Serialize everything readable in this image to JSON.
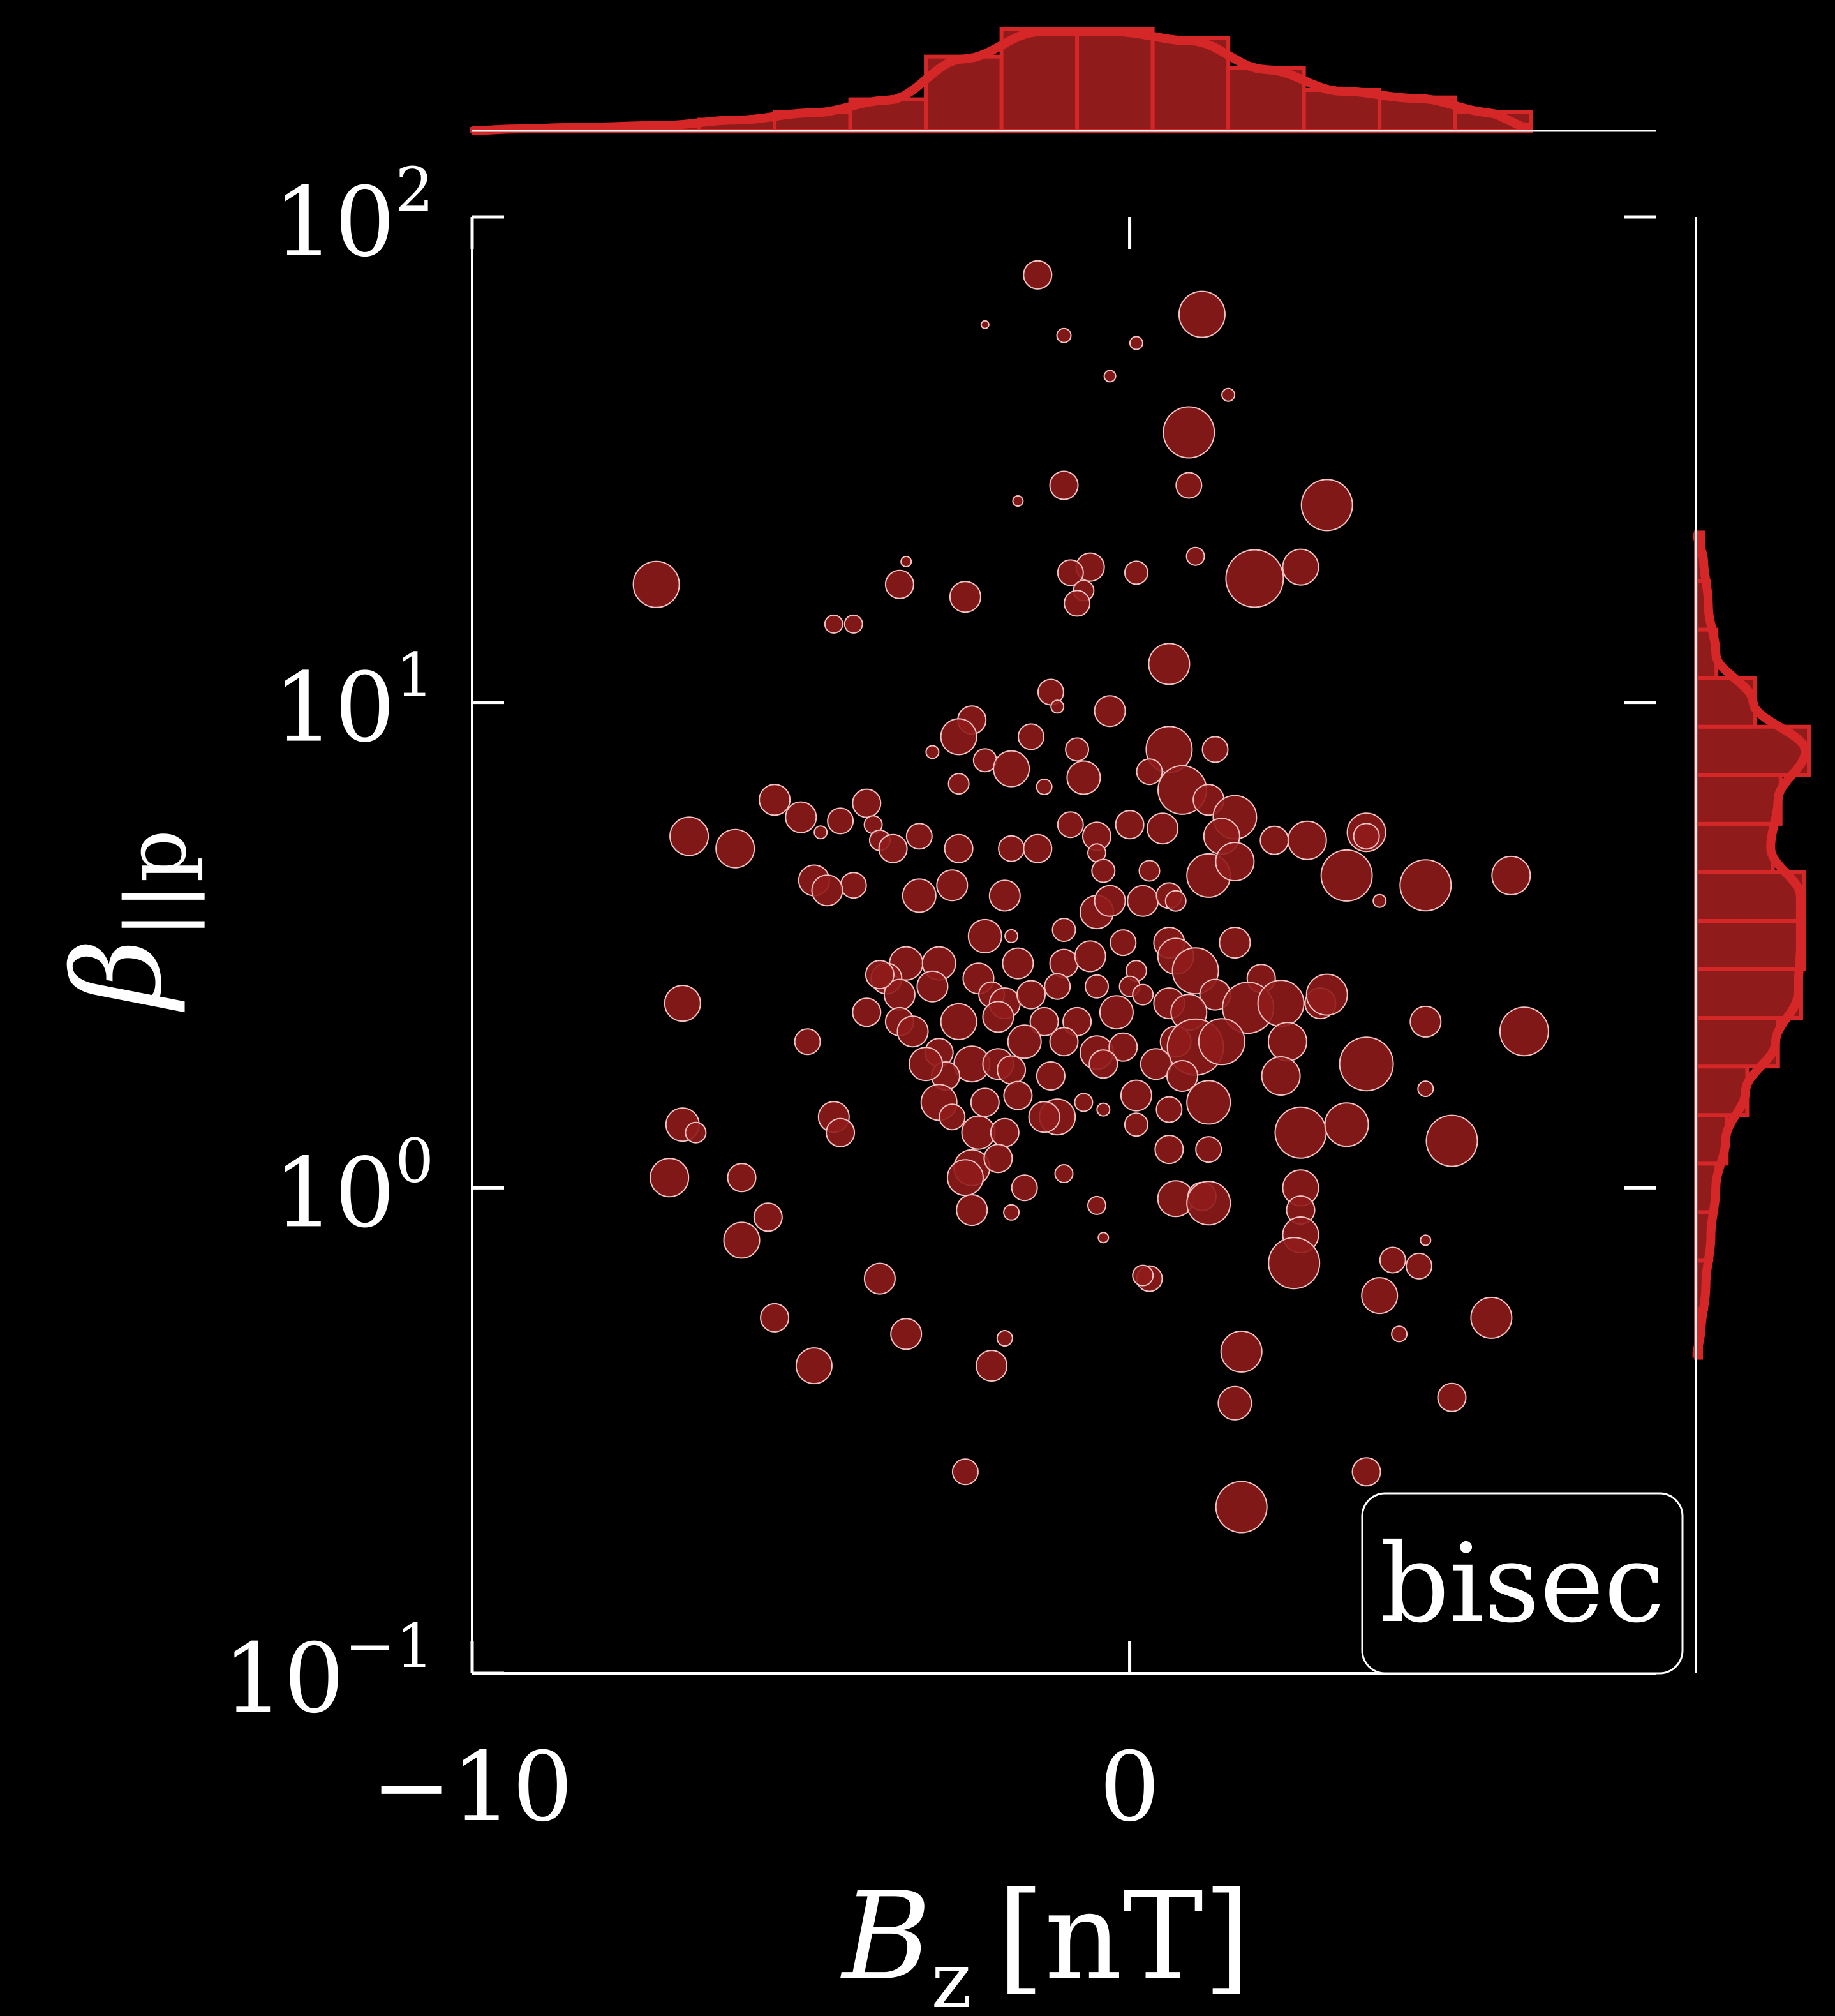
{
  "chart_data": {
    "type": "scatter",
    "title": "",
    "xlabel": {
      "symbol": "B",
      "subscript": "z",
      "unit": "[nT]"
    },
    "ylabel": {
      "symbol": "β",
      "subscript": "||p"
    },
    "xlim": [
      -10,
      8
    ],
    "ylim_log10": [
      -1,
      2
    ],
    "y_scale": "log",
    "x_ticks": [
      {
        "value": -10,
        "label": "−10"
      },
      {
        "value": 0,
        "label": "0"
      }
    ],
    "y_ticks": [
      {
        "exp": 2,
        "base": "10",
        "sup": "2"
      },
      {
        "exp": 1,
        "base": "10",
        "sup": "1"
      },
      {
        "exp": 0,
        "base": "10",
        "sup": "0"
      },
      {
        "exp": -1,
        "base": "10",
        "sup": "−1"
      }
    ],
    "grid": false,
    "legend": {
      "label": "bisec",
      "placement": "bottom-right"
    },
    "marker_color": "#8f1b1b",
    "marker_edge": "#f2c2c2",
    "hist_color": "#d62728",
    "hist_fill": "#8f1b1b",
    "axis_color": "#ffffff",
    "background": "#000000",
    "x_hist": {
      "bin_edges": [
        -10,
        -8.85,
        -7.7,
        -6.55,
        -5.4,
        -4.25,
        -3.1,
        -1.95,
        -0.8,
        0.35,
        1.5,
        2.65,
        3.8,
        4.95,
        6.1
      ],
      "counts": [
        1,
        2,
        3,
        6,
        10,
        17,
        40,
        55,
        55,
        50,
        34,
        22,
        18,
        10
      ]
    },
    "y_hist": {
      "bin_edges_log10": [
        -0.35,
        -0.25,
        -0.15,
        -0.05,
        0.05,
        0.15,
        0.25,
        0.35,
        0.45,
        0.55,
        0.65,
        0.75,
        0.85,
        0.95,
        1.05,
        1.15,
        1.25,
        1.35
      ],
      "counts": [
        2,
        4,
        6,
        8,
        12,
        20,
        32,
        41,
        42,
        42,
        30,
        33,
        44,
        23,
        8,
        5,
        3
      ]
    },
    "points": [
      {
        "x": -1.4,
        "y": 76,
        "s": 22
      },
      {
        "x": -2.2,
        "y": 60,
        "s": 6
      },
      {
        "x": -1.0,
        "y": 57,
        "s": 11
      },
      {
        "x": 0.1,
        "y": 55,
        "s": 10
      },
      {
        "x": 1.1,
        "y": 63,
        "s": 36
      },
      {
        "x": -0.3,
        "y": 47,
        "s": 9
      },
      {
        "x": 1.5,
        "y": 43,
        "s": 10
      },
      {
        "x": 0.9,
        "y": 36,
        "s": 40
      },
      {
        "x": -1.0,
        "y": 28,
        "s": 22
      },
      {
        "x": -1.7,
        "y": 26,
        "s": 8
      },
      {
        "x": 0.9,
        "y": 28,
        "s": 20
      },
      {
        "x": 3.0,
        "y": 25.5,
        "s": 40
      },
      {
        "x": -7.2,
        "y": 17.5,
        "s": 36
      },
      {
        "x": -3.4,
        "y": 19.5,
        "s": 8
      },
      {
        "x": -3.5,
        "y": 17.5,
        "s": 22
      },
      {
        "x": -2.5,
        "y": 16.5,
        "s": 24
      },
      {
        "x": -0.6,
        "y": 19,
        "s": 22
      },
      {
        "x": -0.9,
        "y": 18.5,
        "s": 20
      },
      {
        "x": -0.7,
        "y": 17,
        "s": 16
      },
      {
        "x": 0.1,
        "y": 18.5,
        "s": 18
      },
      {
        "x": 1.0,
        "y": 20,
        "s": 14
      },
      {
        "x": 1.9,
        "y": 18,
        "s": 45
      },
      {
        "x": 2.6,
        "y": 19,
        "s": 28
      },
      {
        "x": -0.8,
        "y": 16,
        "s": 20
      },
      {
        "x": -4.5,
        "y": 14.5,
        "s": 14
      },
      {
        "x": -4.2,
        "y": 14.5,
        "s": 14
      },
      {
        "x": 0.6,
        "y": 12,
        "s": 32
      },
      {
        "x": -1.2,
        "y": 10.5,
        "s": 20
      },
      {
        "x": -1.1,
        "y": 9.8,
        "s": 10
      },
      {
        "x": -0.3,
        "y": 9.6,
        "s": 24
      },
      {
        "x": -2.4,
        "y": 9.2,
        "s": 22
      },
      {
        "x": -2.6,
        "y": 8.5,
        "s": 28
      },
      {
        "x": -1.5,
        "y": 8.5,
        "s": 20
      },
      {
        "x": -2.2,
        "y": 7.6,
        "s": 18
      },
      {
        "x": -0.8,
        "y": 8.0,
        "s": 18
      },
      {
        "x": -1.8,
        "y": 7.3,
        "s": 28
      },
      {
        "x": -3.0,
        "y": 7.9,
        "s": 10
      },
      {
        "x": 0.6,
        "y": 8.0,
        "s": 36
      },
      {
        "x": 1.3,
        "y": 8.0,
        "s": 20
      },
      {
        "x": -2.6,
        "y": 6.8,
        "s": 16
      },
      {
        "x": -1.3,
        "y": 6.7,
        "s": 12
      },
      {
        "x": -0.7,
        "y": 7.0,
        "s": 26
      },
      {
        "x": 0.3,
        "y": 7.2,
        "s": 20
      },
      {
        "x": 0.8,
        "y": 6.6,
        "s": 38
      },
      {
        "x": 1.2,
        "y": 6.3,
        "s": 24
      },
      {
        "x": -5.4,
        "y": 6.3,
        "s": 24
      },
      {
        "x": -4.0,
        "y": 6.2,
        "s": 22
      },
      {
        "x": -5.0,
        "y": 5.8,
        "s": 24
      },
      {
        "x": -4.4,
        "y": 5.7,
        "s": 20
      },
      {
        "x": -3.9,
        "y": 5.6,
        "s": 14
      },
      {
        "x": -4.7,
        "y": 5.4,
        "s": 10
      },
      {
        "x": -6.7,
        "y": 5.3,
        "s": 30
      },
      {
        "x": -6.0,
        "y": 5.0,
        "s": 30
      },
      {
        "x": -3.8,
        "y": 5.2,
        "s": 16
      },
      {
        "x": -3.6,
        "y": 5.0,
        "s": 22
      },
      {
        "x": -3.2,
        "y": 5.3,
        "s": 20
      },
      {
        "x": -2.6,
        "y": 5.0,
        "s": 22
      },
      {
        "x": -1.8,
        "y": 5.0,
        "s": 20
      },
      {
        "x": -1.4,
        "y": 5.0,
        "s": 22
      },
      {
        "x": -0.5,
        "y": 5.3,
        "s": 22
      },
      {
        "x": 0.0,
        "y": 5.6,
        "s": 22
      },
      {
        "x": 0.5,
        "y": 5.5,
        "s": 24
      },
      {
        "x": -0.9,
        "y": 5.6,
        "s": 20
      },
      {
        "x": 1.6,
        "y": 5.8,
        "s": 34
      },
      {
        "x": 1.4,
        "y": 5.3,
        "s": 28
      },
      {
        "x": 2.2,
        "y": 5.2,
        "s": 22
      },
      {
        "x": 2.7,
        "y": 5.2,
        "s": 30
      },
      {
        "x": 3.6,
        "y": 5.4,
        "s": 30
      },
      {
        "x": 3.6,
        "y": 5.3,
        "s": 20
      },
      {
        "x": -0.5,
        "y": 4.9,
        "s": 14
      },
      {
        "x": -0.4,
        "y": 4.5,
        "s": 18
      },
      {
        "x": 0.3,
        "y": 4.5,
        "s": 16
      },
      {
        "x": 1.2,
        "y": 4.4,
        "s": 34
      },
      {
        "x": 3.3,
        "y": 4.4,
        "s": 40
      },
      {
        "x": 4.5,
        "y": 4.2,
        "s": 40
      },
      {
        "x": 5.8,
        "y": 4.4,
        "s": 30
      },
      {
        "x": -4.8,
        "y": 4.3,
        "s": 24
      },
      {
        "x": -4.2,
        "y": 4.2,
        "s": 20
      },
      {
        "x": -4.6,
        "y": 4.1,
        "s": 24
      },
      {
        "x": -2.7,
        "y": 4.2,
        "s": 24
      },
      {
        "x": -3.2,
        "y": 4.0,
        "s": 26
      },
      {
        "x": -1.9,
        "y": 4.0,
        "s": 24
      },
      {
        "x": -0.5,
        "y": 3.7,
        "s": 26
      },
      {
        "x": -0.3,
        "y": 3.9,
        "s": 24
      },
      {
        "x": 0.2,
        "y": 3.9,
        "s": 24
      },
      {
        "x": 0.6,
        "y": 4.0,
        "s": 20
      },
      {
        "x": 0.7,
        "y": 3.9,
        "s": 16
      },
      {
        "x": 1.6,
        "y": 4.7,
        "s": 30
      },
      {
        "x": 3.8,
        "y": 3.9,
        "s": 10
      },
      {
        "x": -2.2,
        "y": 3.3,
        "s": 26
      },
      {
        "x": -1.8,
        "y": 3.3,
        "s": 10
      },
      {
        "x": -1.0,
        "y": 3.4,
        "s": 18
      },
      {
        "x": -0.1,
        "y": 3.2,
        "s": 20
      },
      {
        "x": 0.6,
        "y": 3.2,
        "s": 24
      },
      {
        "x": 1.6,
        "y": 3.2,
        "s": 24
      },
      {
        "x": -3.4,
        "y": 2.9,
        "s": 26
      },
      {
        "x": -2.9,
        "y": 2.9,
        "s": 26
      },
      {
        "x": -2.3,
        "y": 2.7,
        "s": 24
      },
      {
        "x": -1.7,
        "y": 2.9,
        "s": 24
      },
      {
        "x": -1.0,
        "y": 2.9,
        "s": 22
      },
      {
        "x": -0.6,
        "y": 3.0,
        "s": 24
      },
      {
        "x": 0.1,
        "y": 2.8,
        "s": 16
      },
      {
        "x": 0.7,
        "y": 3.0,
        "s": 28
      },
      {
        "x": 1.0,
        "y": 2.8,
        "s": 36
      },
      {
        "x": 2.0,
        "y": 2.7,
        "s": 22
      },
      {
        "x": 2.9,
        "y": 2.4,
        "s": 24
      },
      {
        "x": 3.0,
        "y": 2.5,
        "s": 32
      },
      {
        "x": -3.7,
        "y": 2.7,
        "s": 24
      },
      {
        "x": -3.5,
        "y": 2.5,
        "s": 24
      },
      {
        "x": -3.8,
        "y": 2.75,
        "s": 22
      },
      {
        "x": -3.0,
        "y": 2.6,
        "s": 24
      },
      {
        "x": -2.1,
        "y": 2.5,
        "s": 20
      },
      {
        "x": -1.9,
        "y": 2.4,
        "s": 24
      },
      {
        "x": -1.5,
        "y": 2.5,
        "s": 22
      },
      {
        "x": -1.1,
        "y": 2.6,
        "s": 20
      },
      {
        "x": -0.5,
        "y": 2.6,
        "s": 18
      },
      {
        "x": 0.0,
        "y": 2.6,
        "s": 16
      },
      {
        "x": 0.2,
        "y": 2.5,
        "s": 16
      },
      {
        "x": 0.6,
        "y": 2.4,
        "s": 24
      },
      {
        "x": 1.3,
        "y": 2.5,
        "s": 24
      },
      {
        "x": -4.0,
        "y": 2.3,
        "s": 22
      },
      {
        "x": -3.5,
        "y": 2.2,
        "s": 22
      },
      {
        "x": -2.6,
        "y": 2.2,
        "s": 28
      },
      {
        "x": -2.0,
        "y": 2.25,
        "s": 24
      },
      {
        "x": -1.3,
        "y": 2.2,
        "s": 22
      },
      {
        "x": -0.8,
        "y": 2.2,
        "s": 22
      },
      {
        "x": -0.2,
        "y": 2.3,
        "s": 26
      },
      {
        "x": 0.9,
        "y": 2.3,
        "s": 28
      },
      {
        "x": 1.8,
        "y": 2.35,
        "s": 40
      },
      {
        "x": 2.3,
        "y": 2.4,
        "s": 36
      },
      {
        "x": -6.8,
        "y": 2.4,
        "s": 28
      },
      {
        "x": -4.9,
        "y": 2.0,
        "s": 20
      },
      {
        "x": 4.5,
        "y": 2.2,
        "s": 24
      },
      {
        "x": 6.0,
        "y": 2.1,
        "s": 38
      },
      {
        "x": -3.3,
        "y": 2.1,
        "s": 24
      },
      {
        "x": -2.9,
        "y": 1.9,
        "s": 22
      },
      {
        "x": -2.4,
        "y": 1.8,
        "s": 28
      },
      {
        "x": -2.0,
        "y": 1.8,
        "s": 24
      },
      {
        "x": -1.6,
        "y": 2.0,
        "s": 26
      },
      {
        "x": -1.0,
        "y": 2.0,
        "s": 22
      },
      {
        "x": -0.5,
        "y": 1.9,
        "s": 26
      },
      {
        "x": -0.1,
        "y": 1.95,
        "s": 22
      },
      {
        "x": 0.7,
        "y": 2.0,
        "s": 24
      },
      {
        "x": 1.0,
        "y": 1.95,
        "s": 44
      },
      {
        "x": 1.4,
        "y": 2.0,
        "s": 36
      },
      {
        "x": 2.4,
        "y": 2.0,
        "s": 30
      },
      {
        "x": 3.6,
        "y": 1.8,
        "s": 42
      },
      {
        "x": -2.8,
        "y": 1.7,
        "s": 22
      },
      {
        "x": -3.1,
        "y": 1.8,
        "s": 26
      },
      {
        "x": -1.8,
        "y": 1.75,
        "s": 22
      },
      {
        "x": -1.2,
        "y": 1.7,
        "s": 22
      },
      {
        "x": -0.4,
        "y": 1.8,
        "s": 22
      },
      {
        "x": 0.4,
        "y": 1.8,
        "s": 24
      },
      {
        "x": 0.8,
        "y": 1.7,
        "s": 24
      },
      {
        "x": 2.3,
        "y": 1.7,
        "s": 30
      },
      {
        "x": 4.5,
        "y": 1.6,
        "s": 12
      },
      {
        "x": -2.9,
        "y": 1.5,
        "s": 28
      },
      {
        "x": -2.2,
        "y": 1.5,
        "s": 22
      },
      {
        "x": -1.7,
        "y": 1.55,
        "s": 22
      },
      {
        "x": -1.1,
        "y": 1.4,
        "s": 28
      },
      {
        "x": -0.7,
        "y": 1.5,
        "s": 14
      },
      {
        "x": -0.4,
        "y": 1.45,
        "s": 10
      },
      {
        "x": 0.1,
        "y": 1.55,
        "s": 24
      },
      {
        "x": 0.1,
        "y": 1.35,
        "s": 18
      },
      {
        "x": 0.6,
        "y": 1.45,
        "s": 20
      },
      {
        "x": 1.2,
        "y": 1.5,
        "s": 34
      },
      {
        "x": -4.5,
        "y": 1.4,
        "s": 24
      },
      {
        "x": -4.4,
        "y": 1.3,
        "s": 22
      },
      {
        "x": -6.8,
        "y": 1.35,
        "s": 26
      },
      {
        "x": -6.6,
        "y": 1.3,
        "s": 16
      },
      {
        "x": -2.7,
        "y": 1.4,
        "s": 20
      },
      {
        "x": -2.3,
        "y": 1.3,
        "s": 26
      },
      {
        "x": -1.9,
        "y": 1.3,
        "s": 22
      },
      {
        "x": -1.3,
        "y": 1.4,
        "s": 24
      },
      {
        "x": 0.6,
        "y": 1.2,
        "s": 22
      },
      {
        "x": 1.2,
        "y": 1.2,
        "s": 20
      },
      {
        "x": 2.6,
        "y": 1.3,
        "s": 40
      },
      {
        "x": 3.3,
        "y": 1.35,
        "s": 34
      },
      {
        "x": 4.9,
        "y": 1.25,
        "s": 40
      },
      {
        "x": -2.4,
        "y": 1.1,
        "s": 28
      },
      {
        "x": -2.5,
        "y": 1.05,
        "s": 28
      },
      {
        "x": -2.0,
        "y": 1.15,
        "s": 22
      },
      {
        "x": -1.6,
        "y": 1.0,
        "s": 20
      },
      {
        "x": -1.0,
        "y": 1.07,
        "s": 14
      },
      {
        "x": -7.0,
        "y": 1.05,
        "s": 30
      },
      {
        "x": -5.9,
        "y": 1.05,
        "s": 22
      },
      {
        "x": 0.7,
        "y": 0.95,
        "s": 28
      },
      {
        "x": 1.1,
        "y": 0.96,
        "s": 22
      },
      {
        "x": 1.2,
        "y": 0.93,
        "s": 34
      },
      {
        "x": 2.6,
        "y": 1.0,
        "s": 28
      },
      {
        "x": 2.6,
        "y": 0.9,
        "s": 22
      },
      {
        "x": 2.6,
        "y": 0.8,
        "s": 28
      },
      {
        "x": -2.4,
        "y": 0.9,
        "s": 24
      },
      {
        "x": -1.8,
        "y": 0.89,
        "s": 12
      },
      {
        "x": -0.5,
        "y": 0.92,
        "s": 14
      },
      {
        "x": -5.5,
        "y": 0.87,
        "s": 22
      },
      {
        "x": -5.9,
        "y": 0.78,
        "s": 28
      },
      {
        "x": -0.4,
        "y": 0.79,
        "s": 8
      },
      {
        "x": 2.5,
        "y": 0.7,
        "s": 40
      },
      {
        "x": 4.0,
        "y": 0.71,
        "s": 20
      },
      {
        "x": 4.4,
        "y": 0.69,
        "s": 20
      },
      {
        "x": 4.5,
        "y": 0.78,
        "s": 8
      },
      {
        "x": 0.3,
        "y": 0.65,
        "s": 20
      },
      {
        "x": 0.2,
        "y": 0.66,
        "s": 16
      },
      {
        "x": -3.8,
        "y": 0.65,
        "s": 24
      },
      {
        "x": 3.8,
        "y": 0.6,
        "s": 28
      },
      {
        "x": -5.4,
        "y": 0.54,
        "s": 22
      },
      {
        "x": -3.4,
        "y": 0.5,
        "s": 24
      },
      {
        "x": -1.9,
        "y": 0.49,
        "s": 12
      },
      {
        "x": 4.1,
        "y": 0.5,
        "s": 12
      },
      {
        "x": 5.5,
        "y": 0.54,
        "s": 32
      },
      {
        "x": 1.7,
        "y": 0.46,
        "s": 32
      },
      {
        "x": -4.8,
        "y": 0.43,
        "s": 28
      },
      {
        "x": -2.1,
        "y": 0.43,
        "s": 24
      },
      {
        "x": 1.6,
        "y": 0.36,
        "s": 26
      },
      {
        "x": 4.9,
        "y": 0.37,
        "s": 22
      },
      {
        "x": -2.5,
        "y": 0.26,
        "s": 20
      },
      {
        "x": 3.6,
        "y": 0.26,
        "s": 22
      },
      {
        "x": 1.7,
        "y": 0.22,
        "s": 40
      }
    ]
  }
}
